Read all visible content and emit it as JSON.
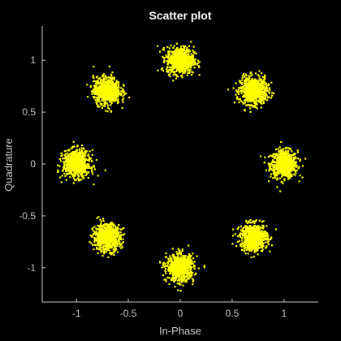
{
  "chart_data": {
    "type": "scatter",
    "title": "Scatter plot",
    "xlabel": "In-Phase",
    "ylabel": "Quadrature",
    "xlim": [
      -1.33,
      1.33
    ],
    "ylim": [
      -1.33,
      1.33
    ],
    "xticks": [
      -1,
      -0.5,
      0,
      0.5,
      1
    ],
    "xtick_labels": [
      "-1",
      "-0.5",
      "0",
      "0.5",
      "1"
    ],
    "yticks": [
      -1,
      -0.5,
      0,
      0.5,
      1
    ],
    "ytick_labels": [
      "-1",
      "-0.5",
      "0",
      "0.5",
      "1"
    ],
    "grid": false,
    "background": "#000000",
    "axis_color": "#c8c8c8",
    "marker_color": "#ffff00",
    "series": [
      {
        "clusters": [
          {
            "x": 1.0,
            "y": 0.0
          },
          {
            "x": 0.707,
            "y": 0.707
          },
          {
            "x": 0.0,
            "y": 1.0
          },
          {
            "x": -0.707,
            "y": 0.707
          },
          {
            "x": -1.0,
            "y": 0.0
          },
          {
            "x": -0.707,
            "y": -0.707
          },
          {
            "x": 0.0,
            "y": -1.0
          },
          {
            "x": 0.707,
            "y": -0.707
          }
        ],
        "spread_std": 0.065
      }
    ]
  }
}
